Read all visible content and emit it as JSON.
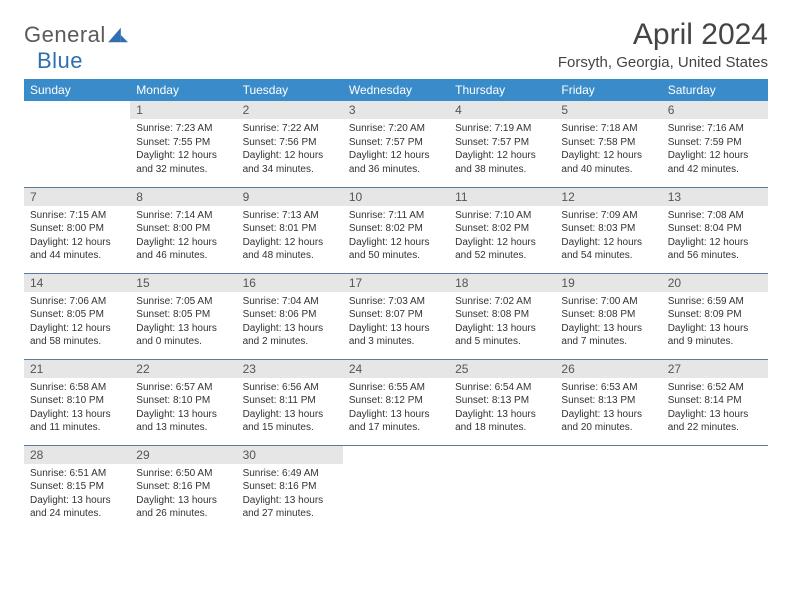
{
  "logo": {
    "text1": "General",
    "text2": "Blue"
  },
  "title": "April 2024",
  "location": "Forsyth, Georgia, United States",
  "colors": {
    "header_bg": "#3a8bc9",
    "header_text": "#ffffff",
    "daynum_bg": "#e6e6e6",
    "daynum_text": "#555555",
    "border": "#5a7a9a",
    "logo_gray": "#5a5a5a",
    "logo_blue": "#2f6fae"
  },
  "weekdays": [
    "Sunday",
    "Monday",
    "Tuesday",
    "Wednesday",
    "Thursday",
    "Friday",
    "Saturday"
  ],
  "weeks": [
    [
      null,
      {
        "n": "1",
        "sr": "7:23 AM",
        "ss": "7:55 PM",
        "dl": "12 hours and 32 minutes."
      },
      {
        "n": "2",
        "sr": "7:22 AM",
        "ss": "7:56 PM",
        "dl": "12 hours and 34 minutes."
      },
      {
        "n": "3",
        "sr": "7:20 AM",
        "ss": "7:57 PM",
        "dl": "12 hours and 36 minutes."
      },
      {
        "n": "4",
        "sr": "7:19 AM",
        "ss": "7:57 PM",
        "dl": "12 hours and 38 minutes."
      },
      {
        "n": "5",
        "sr": "7:18 AM",
        "ss": "7:58 PM",
        "dl": "12 hours and 40 minutes."
      },
      {
        "n": "6",
        "sr": "7:16 AM",
        "ss": "7:59 PM",
        "dl": "12 hours and 42 minutes."
      }
    ],
    [
      {
        "n": "7",
        "sr": "7:15 AM",
        "ss": "8:00 PM",
        "dl": "12 hours and 44 minutes."
      },
      {
        "n": "8",
        "sr": "7:14 AM",
        "ss": "8:00 PM",
        "dl": "12 hours and 46 minutes."
      },
      {
        "n": "9",
        "sr": "7:13 AM",
        "ss": "8:01 PM",
        "dl": "12 hours and 48 minutes."
      },
      {
        "n": "10",
        "sr": "7:11 AM",
        "ss": "8:02 PM",
        "dl": "12 hours and 50 minutes."
      },
      {
        "n": "11",
        "sr": "7:10 AM",
        "ss": "8:02 PM",
        "dl": "12 hours and 52 minutes."
      },
      {
        "n": "12",
        "sr": "7:09 AM",
        "ss": "8:03 PM",
        "dl": "12 hours and 54 minutes."
      },
      {
        "n": "13",
        "sr": "7:08 AM",
        "ss": "8:04 PM",
        "dl": "12 hours and 56 minutes."
      }
    ],
    [
      {
        "n": "14",
        "sr": "7:06 AM",
        "ss": "8:05 PM",
        "dl": "12 hours and 58 minutes."
      },
      {
        "n": "15",
        "sr": "7:05 AM",
        "ss": "8:05 PM",
        "dl": "13 hours and 0 minutes."
      },
      {
        "n": "16",
        "sr": "7:04 AM",
        "ss": "8:06 PM",
        "dl": "13 hours and 2 minutes."
      },
      {
        "n": "17",
        "sr": "7:03 AM",
        "ss": "8:07 PM",
        "dl": "13 hours and 3 minutes."
      },
      {
        "n": "18",
        "sr": "7:02 AM",
        "ss": "8:08 PM",
        "dl": "13 hours and 5 minutes."
      },
      {
        "n": "19",
        "sr": "7:00 AM",
        "ss": "8:08 PM",
        "dl": "13 hours and 7 minutes."
      },
      {
        "n": "20",
        "sr": "6:59 AM",
        "ss": "8:09 PM",
        "dl": "13 hours and 9 minutes."
      }
    ],
    [
      {
        "n": "21",
        "sr": "6:58 AM",
        "ss": "8:10 PM",
        "dl": "13 hours and 11 minutes."
      },
      {
        "n": "22",
        "sr": "6:57 AM",
        "ss": "8:10 PM",
        "dl": "13 hours and 13 minutes."
      },
      {
        "n": "23",
        "sr": "6:56 AM",
        "ss": "8:11 PM",
        "dl": "13 hours and 15 minutes."
      },
      {
        "n": "24",
        "sr": "6:55 AM",
        "ss": "8:12 PM",
        "dl": "13 hours and 17 minutes."
      },
      {
        "n": "25",
        "sr": "6:54 AM",
        "ss": "8:13 PM",
        "dl": "13 hours and 18 minutes."
      },
      {
        "n": "26",
        "sr": "6:53 AM",
        "ss": "8:13 PM",
        "dl": "13 hours and 20 minutes."
      },
      {
        "n": "27",
        "sr": "6:52 AM",
        "ss": "8:14 PM",
        "dl": "13 hours and 22 minutes."
      }
    ],
    [
      {
        "n": "28",
        "sr": "6:51 AM",
        "ss": "8:15 PM",
        "dl": "13 hours and 24 minutes."
      },
      {
        "n": "29",
        "sr": "6:50 AM",
        "ss": "8:16 PM",
        "dl": "13 hours and 26 minutes."
      },
      {
        "n": "30",
        "sr": "6:49 AM",
        "ss": "8:16 PM",
        "dl": "13 hours and 27 minutes."
      },
      null,
      null,
      null,
      null
    ]
  ],
  "labels": {
    "sunrise": "Sunrise:",
    "sunset": "Sunset:",
    "daylight": "Daylight:"
  }
}
